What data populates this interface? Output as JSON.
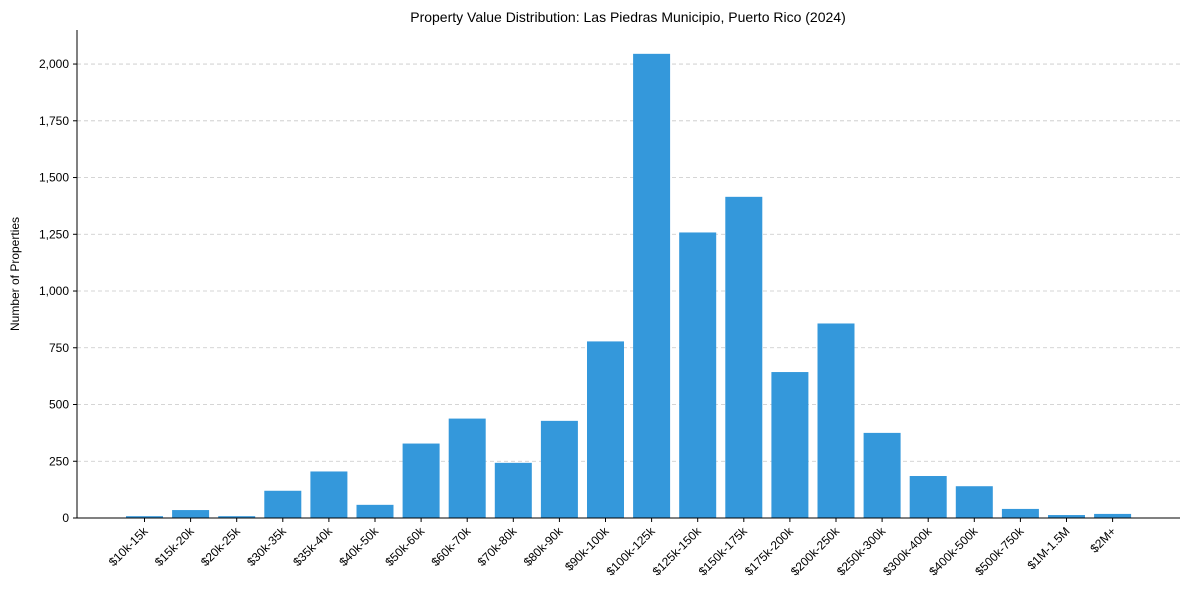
{
  "chart_data": {
    "type": "bar",
    "title": "Property Value Distribution: Las Piedras Municipio, Puerto Rico (2024)",
    "xlabel": "",
    "ylabel": "Number of Properties",
    "categories": [
      "$10k-15k",
      "$15k-20k",
      "$20k-25k",
      "$30k-35k",
      "$35k-40k",
      "$40k-50k",
      "$50k-60k",
      "$60k-70k",
      "$70k-80k",
      "$80k-90k",
      "$90k-100k",
      "$100k-125k",
      "$125k-150k",
      "$150k-175k",
      "$175k-200k",
      "$200k-250k",
      "$250k-300k",
      "$300k-400k",
      "$400k-500k",
      "$500k-750k",
      "$1M-1.5M",
      "$2M+"
    ],
    "values": [
      8,
      35,
      8,
      120,
      205,
      58,
      328,
      438,
      243,
      428,
      778,
      2045,
      1258,
      1415,
      643,
      857,
      375,
      185,
      140,
      40,
      13,
      18
    ],
    "ylim": [
      0,
      2150
    ],
    "yticks": [
      0,
      250,
      500,
      750,
      1000,
      1250,
      1500,
      1750,
      2000
    ],
    "ytick_labels": [
      "0",
      "250",
      "500",
      "750",
      "1,000",
      "1,250",
      "1,500",
      "1,750",
      "2,000"
    ],
    "grid": "y-dashed",
    "bar_color": "#3498db"
  }
}
